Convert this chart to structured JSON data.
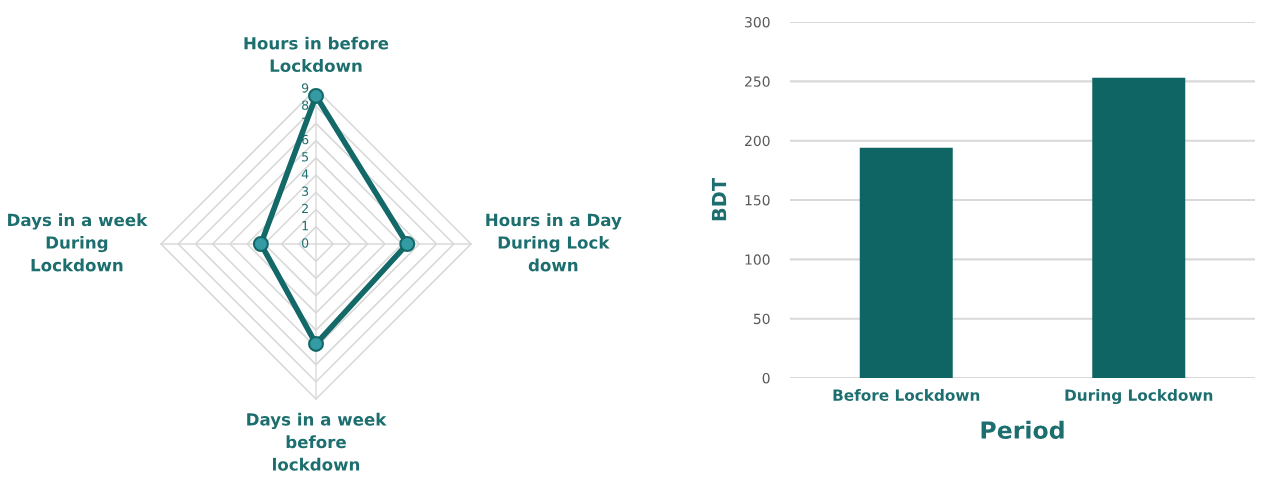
{
  "chart_data": [
    {
      "type": "radar",
      "categories": [
        "Hours in before\nLockdown",
        "Hours in a Day\nDuring Lock\ndown",
        "Days in a week\nbefore\nlockdown",
        "Days in a week\nDuring\nLockdown"
      ],
      "series": [
        {
          "color": "#136868",
          "values": [
            8.6,
            5.3,
            5.8,
            3.2
          ]
        }
      ],
      "ylim": [
        0,
        9
      ],
      "yticks": [
        0,
        1,
        2,
        3,
        4,
        5,
        6,
        7,
        8,
        9
      ],
      "grid": true,
      "marker": "circle"
    },
    {
      "type": "bar",
      "categories": [
        "Before Lockdown",
        "During Lockdown"
      ],
      "series": [
        {
          "color": "#0f6464",
          "values": [
            194,
            253
          ]
        }
      ],
      "ylim": [
        0,
        300
      ],
      "yticks": [
        0,
        50,
        100,
        150,
        200,
        250,
        300
      ],
      "ylabel": "BDT",
      "xlabel": "Period",
      "grid": "y"
    }
  ]
}
